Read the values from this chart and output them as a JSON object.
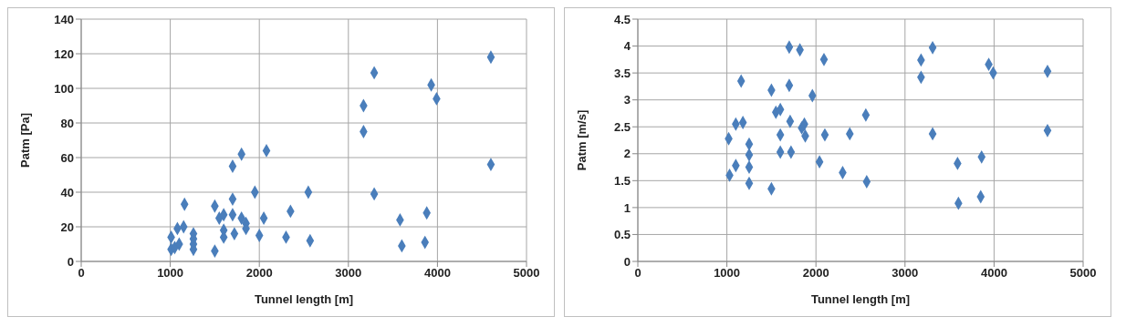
{
  "chart_data": [
    {
      "type": "scatter",
      "xlabel": "Tunnel length [m]",
      "ylabel": "Patm [Pa]",
      "xlim": [
        0,
        5000
      ],
      "xticks": [
        0,
        1000,
        2000,
        3000,
        4000,
        5000
      ],
      "ylim": [
        0,
        140
      ],
      "yticks": [
        0,
        20,
        40,
        60,
        80,
        100,
        120,
        140
      ],
      "grid": true,
      "marker": "diamond",
      "legend": false,
      "series": [
        {
          "color": "#4a7ebb",
          "x": [
            1010,
            1010,
            1050,
            1100,
            1080,
            1150,
            1160,
            1260,
            1260,
            1260,
            1260,
            1500,
            1500,
            1550,
            1600,
            1600,
            1600,
            1700,
            1700,
            1700,
            1720,
            1800,
            1800,
            1850,
            1850,
            1950,
            2000,
            2050,
            2080,
            2300,
            2350,
            2550,
            2570,
            3170,
            3170,
            3290,
            3290,
            3580,
            3600,
            3880,
            3860,
            3930,
            3990,
            4600,
            4600
          ],
          "values": [
            14,
            7,
            8,
            10,
            19,
            20,
            33,
            16,
            13,
            10,
            7,
            6,
            32,
            25,
            27,
            18,
            14,
            36,
            55,
            27,
            16,
            62,
            25,
            22,
            19,
            40,
            15,
            25,
            64,
            14,
            29,
            40,
            12,
            75,
            90,
            109,
            39,
            24,
            9,
            28,
            11,
            102,
            94,
            118,
            56
          ]
        }
      ]
    },
    {
      "type": "scatter",
      "xlabel": "Tunnel length [m]",
      "ylabel": "Patm [m/s]",
      "xlim": [
        0,
        5000
      ],
      "xticks": [
        0,
        1000,
        2000,
        3000,
        4000,
        5000
      ],
      "ylim": [
        0,
        4.5
      ],
      "yticks": [
        0,
        0.5,
        1,
        1.5,
        2,
        2.5,
        3,
        3.5,
        4,
        4.5
      ],
      "grid": true,
      "marker": "diamond",
      "legend": false,
      "series": [
        {
          "color": "#4a7ebb",
          "x": [
            1020,
            1030,
            1100,
            1100,
            1160,
            1180,
            1250,
            1250,
            1250,
            1250,
            1500,
            1500,
            1550,
            1600,
            1600,
            1600,
            1700,
            1700,
            1710,
            1720,
            1820,
            1840,
            1870,
            1880,
            1960,
            2040,
            2090,
            2100,
            2300,
            2380,
            2560,
            2570,
            3180,
            3180,
            3310,
            3310,
            3590,
            3600,
            3860,
            3850,
            3940,
            3990,
            4600,
            4600
          ],
          "values": [
            2.28,
            1.6,
            1.78,
            2.55,
            3.35,
            2.58,
            2.18,
            1.98,
            1.75,
            1.45,
            3.18,
            1.35,
            2.77,
            2.82,
            2.35,
            2.03,
            3.98,
            3.27,
            2.6,
            2.03,
            3.93,
            2.48,
            2.55,
            2.33,
            3.08,
            1.85,
            3.75,
            2.35,
            1.65,
            2.37,
            2.72,
            1.48,
            3.74,
            3.42,
            3.97,
            2.37,
            1.82,
            1.08,
            1.94,
            1.2,
            3.66,
            3.5,
            3.53,
            2.43
          ]
        }
      ]
    }
  ]
}
